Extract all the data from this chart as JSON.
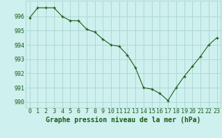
{
  "x": [
    0,
    1,
    2,
    3,
    4,
    5,
    6,
    7,
    8,
    9,
    10,
    11,
    12,
    13,
    14,
    15,
    16,
    17,
    18,
    19,
    20,
    21,
    22,
    23
  ],
  "y": [
    995.9,
    996.6,
    996.6,
    996.6,
    996.0,
    995.7,
    995.7,
    995.1,
    994.9,
    994.4,
    994.0,
    993.9,
    993.3,
    992.4,
    991.0,
    990.9,
    990.6,
    990.1,
    991.0,
    991.8,
    992.5,
    993.2,
    994.0,
    994.5
  ],
  "line_color": "#1a5c1a",
  "marker": "+",
  "bg_color": "#cef0ee",
  "grid_color": "#aed8d4",
  "xlabel": "Graphe pression niveau de la mer (hPa)",
  "xlabel_fontsize": 7,
  "ylabel_ticks": [
    990,
    991,
    992,
    993,
    994,
    995,
    996
  ],
  "ylim": [
    989.6,
    997.1
  ],
  "xlim": [
    -0.5,
    23.5
  ],
  "title_color": "#1a5c1a",
  "tick_color": "#1a5c1a",
  "tick_fontsize": 6.0
}
